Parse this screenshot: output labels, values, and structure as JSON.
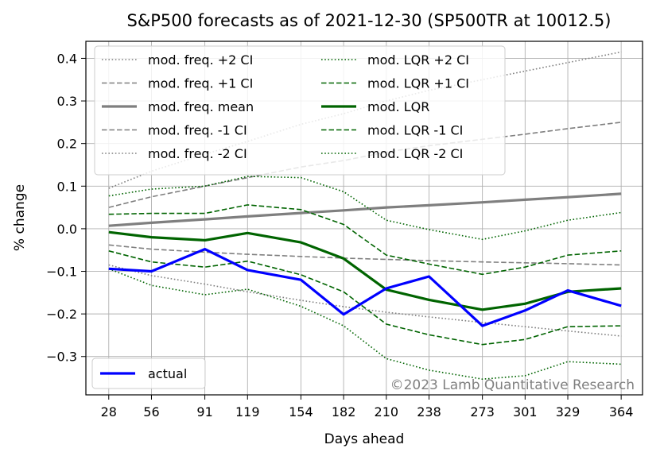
{
  "chart_data": {
    "type": "line",
    "title": "S&P500 forecasts as of 2021-12-30 (SP500TR at 10012.5)",
    "xlabel": "Days ahead",
    "ylabel": "% change",
    "x": [
      28,
      56,
      91,
      119,
      154,
      182,
      210,
      238,
      273,
      301,
      329,
      364
    ],
    "x_ticks": [
      "28",
      "56",
      "91",
      "119",
      "154",
      "182",
      "210",
      "238",
      "273",
      "301",
      "329",
      "364"
    ],
    "y_ticks": [
      0.4,
      0.3,
      0.2,
      0.1,
      0.0,
      -0.1,
      -0.2,
      -0.3
    ],
    "y_tick_labels": [
      "0.4",
      "0.3",
      "0.2",
      "0.1",
      "0.0",
      "−0.1",
      "−0.2",
      "−0.3"
    ],
    "xlim": [
      13,
      378
    ],
    "ylim": [
      -0.39,
      0.44
    ],
    "grid": true,
    "legend_placement": "upper-left (two columns); 'actual' lower-left",
    "watermark": "©2023 Lamb Quantitative Research",
    "series": [
      {
        "name": "mod. freq. +2 CI",
        "color": "#7f7f7f",
        "style": "dotted",
        "width": "thin",
        "values": [
          0.095,
          0.135,
          0.175,
          0.205,
          0.245,
          0.27,
          0.3,
          0.325,
          0.35,
          0.37,
          0.39,
          0.415
        ]
      },
      {
        "name": "mod. freq. +1 CI",
        "color": "#7f7f7f",
        "style": "dashed",
        "width": "thin",
        "values": [
          0.05,
          0.075,
          0.1,
          0.12,
          0.145,
          0.16,
          0.18,
          0.195,
          0.21,
          0.222,
          0.235,
          0.25
        ]
      },
      {
        "name": "mod. freq. mean",
        "color": "#7f7f7f",
        "style": "solid",
        "width": "thick",
        "values": [
          0.007,
          0.014,
          0.022,
          0.029,
          0.037,
          0.043,
          0.05,
          0.055,
          0.062,
          0.068,
          0.074,
          0.082
        ]
      },
      {
        "name": "mod. freq. -1 CI",
        "color": "#7f7f7f",
        "style": "dashed",
        "width": "thin",
        "values": [
          -0.038,
          -0.048,
          -0.055,
          -0.06,
          -0.065,
          -0.069,
          -0.072,
          -0.075,
          -0.078,
          -0.08,
          -0.082,
          -0.085
        ]
      },
      {
        "name": "mod. freq. -2 CI",
        "color": "#7f7f7f",
        "style": "dotted",
        "width": "thin",
        "values": [
          -0.085,
          -0.11,
          -0.13,
          -0.148,
          -0.168,
          -0.183,
          -0.196,
          -0.207,
          -0.22,
          -0.23,
          -0.24,
          -0.252
        ]
      },
      {
        "name": "mod. LQR +2 CI",
        "color": "#006400",
        "style": "dotted",
        "width": "thin",
        "values": [
          0.077,
          0.093,
          0.1,
          0.123,
          0.12,
          0.087,
          0.02,
          -0.002,
          -0.025,
          -0.005,
          0.02,
          0.038
        ]
      },
      {
        "name": "mod. LQR +1 CI",
        "color": "#006400",
        "style": "dashed",
        "width": "thin",
        "values": [
          0.034,
          0.036,
          0.036,
          0.056,
          0.045,
          0.01,
          -0.062,
          -0.083,
          -0.107,
          -0.09,
          -0.062,
          -0.052
        ]
      },
      {
        "name": "mod. LQR",
        "color": "#006400",
        "style": "solid",
        "width": "thick",
        "values": [
          -0.008,
          -0.02,
          -0.027,
          -0.01,
          -0.032,
          -0.07,
          -0.143,
          -0.167,
          -0.19,
          -0.176,
          -0.148,
          -0.14
        ]
      },
      {
        "name": "mod. LQR -1 CI",
        "color": "#006400",
        "style": "dashed",
        "width": "thin",
        "values": [
          -0.052,
          -0.078,
          -0.09,
          -0.076,
          -0.108,
          -0.148,
          -0.224,
          -0.249,
          -0.272,
          -0.26,
          -0.23,
          -0.228
        ]
      },
      {
        "name": "mod. LQR -2 CI",
        "color": "#006400",
        "style": "dotted",
        "width": "thin",
        "values": [
          -0.094,
          -0.133,
          -0.155,
          -0.142,
          -0.182,
          -0.228,
          -0.305,
          -0.332,
          -0.353,
          -0.345,
          -0.312,
          -0.318
        ]
      },
      {
        "name": "actual",
        "color": "#0000ff",
        "style": "solid",
        "width": "thick",
        "values": [
          -0.094,
          -0.1,
          -0.048,
          -0.097,
          -0.12,
          -0.201,
          -0.14,
          -0.112,
          -0.228,
          -0.192,
          -0.145,
          -0.181
        ]
      }
    ]
  }
}
